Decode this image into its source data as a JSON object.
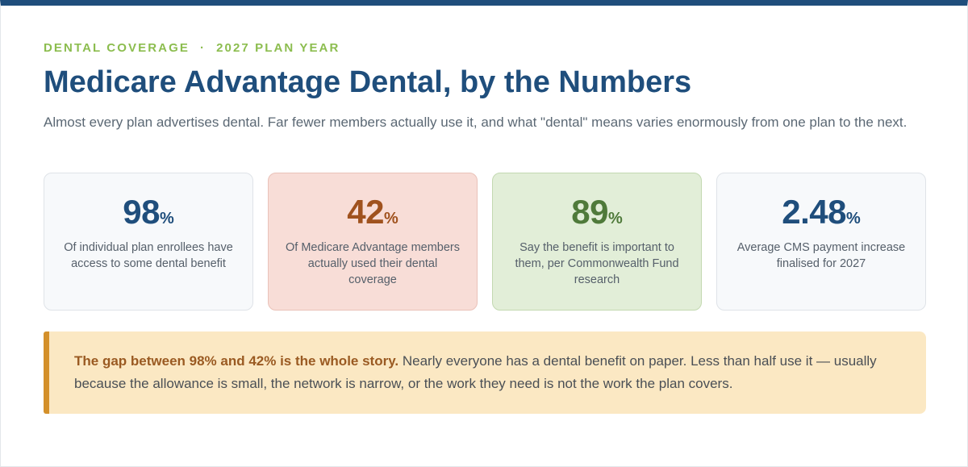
{
  "header": {
    "eyebrow_left": "DENTAL COVERAGE",
    "eyebrow_sep": "·",
    "eyebrow_right": "2027 PLAN YEAR",
    "title": "Medicare Advantage Dental, by the Numbers",
    "subtitle": "Almost every plan advertises dental. Far fewer members actually use it, and what \"dental\" means varies enormously from one plan to the next."
  },
  "stats": [
    {
      "value": "98",
      "unit": "%",
      "label": "Of individual plan enrollees have access to some dental benefit",
      "color": "#1f4e7c",
      "background": "#f7f9fb"
    },
    {
      "value": "42",
      "unit": "%",
      "label": "Of Medicare Advantage members actually used their dental coverage",
      "color": "#a0521e",
      "background": "#f8ddd7"
    },
    {
      "value": "89",
      "unit": "%",
      "label": "Say the benefit is important to them, per Commonwealth Fund research",
      "color": "#4f7a3a",
      "background": "#e2eed8"
    },
    {
      "value": "2.48",
      "unit": "%",
      "label": "Average CMS payment increase finalised for 2027",
      "color": "#1f4e7c",
      "background": "#f7f9fb"
    }
  ],
  "callout": {
    "lead": "The gap between 98% and 42% is the whole story.",
    "body": " Nearly everyone has a dental benefit on paper. Less than half use it — usually because the allowance is small, the network is narrow, or the work they need is not the work the plan covers.",
    "accent_color": "#d4902a",
    "background": "#fbe8c3"
  },
  "theme": {
    "primary": "#1f4e7c",
    "eyebrow": "#8cbd4f",
    "text_muted": "#5b6874"
  }
}
